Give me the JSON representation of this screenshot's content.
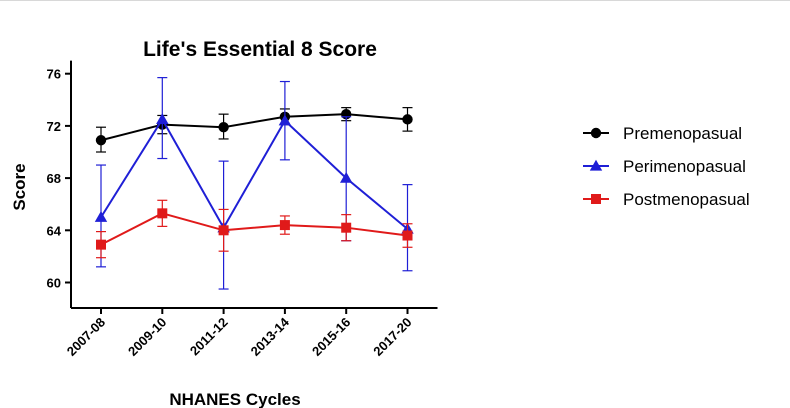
{
  "chart_data": {
    "type": "line",
    "title": "Life's Essential 8 Score",
    "xlabel": "NHANES Cycles",
    "ylabel": "Score",
    "ylim": [
      58,
      77
    ],
    "yticks": [
      60,
      64,
      68,
      72,
      76
    ],
    "categories": [
      "2007-08",
      "2009-10",
      "2011-12",
      "2013-14",
      "2015-16",
      "2017-20"
    ],
    "legend_position": "right",
    "grid": false,
    "series": [
      {
        "name": "Premenopasual",
        "color": "#000000",
        "marker": "circle",
        "values": [
          70.9,
          72.1,
          71.9,
          72.7,
          72.9,
          72.5
        ],
        "err_low": [
          70.0,
          71.4,
          71.0,
          72.1,
          72.4,
          71.6
        ],
        "err_high": [
          71.9,
          72.8,
          72.9,
          73.3,
          73.4,
          73.4
        ]
      },
      {
        "name": "Perimenopasual",
        "color": "#1f1fd6",
        "marker": "triangle",
        "values": [
          65.0,
          72.5,
          64.2,
          72.4,
          68.0,
          64.1
        ],
        "err_low": [
          61.2,
          69.5,
          59.5,
          69.4,
          63.2,
          60.9
        ],
        "err_high": [
          69.0,
          75.7,
          69.3,
          75.4,
          72.7,
          67.5
        ]
      },
      {
        "name": "Postmenopasual",
        "color": "#e01a1a",
        "marker": "square",
        "values": [
          62.9,
          65.3,
          64.0,
          64.4,
          64.2,
          63.6
        ],
        "err_low": [
          61.9,
          64.3,
          62.4,
          63.7,
          63.2,
          62.7
        ],
        "err_high": [
          63.9,
          66.3,
          65.6,
          65.1,
          65.2,
          64.5
        ]
      }
    ]
  }
}
